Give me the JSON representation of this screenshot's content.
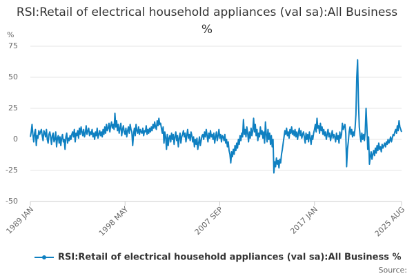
{
  "chart_data": {
    "type": "line",
    "title": "RSI:Retail of electrical household appliances (val sa):All Business %",
    "y_label": "%",
    "source": "Source:",
    "categories": [
      "1989 JAN",
      null,
      null,
      null,
      null,
      null,
      null,
      null,
      null,
      null,
      null,
      null,
      null,
      null,
      null,
      null,
      null,
      null,
      null,
      null,
      null,
      null,
      null,
      null,
      null,
      null,
      null,
      null,
      null,
      null,
      null,
      null,
      null,
      null,
      null,
      null,
      null,
      null,
      null,
      null,
      null,
      null,
      null,
      null,
      null,
      null,
      null,
      null,
      null,
      null,
      null,
      null,
      null,
      null,
      null,
      null,
      null,
      null,
      null,
      null,
      null,
      null,
      null,
      null,
      null,
      null,
      null,
      null,
      null,
      null,
      null,
      null,
      null,
      null,
      null,
      null,
      null,
      null,
      null,
      null,
      null,
      null,
      null,
      null,
      null,
      null,
      null,
      null,
      null,
      null,
      null,
      null,
      null,
      null,
      null,
      null,
      null,
      null,
      null,
      null,
      null,
      null,
      null,
      null,
      null,
      null,
      null,
      null,
      null,
      null,
      null,
      null,
      "1998 MAY",
      null,
      null,
      null,
      null,
      null,
      null,
      null,
      null,
      null,
      null,
      null,
      null,
      null,
      null,
      null,
      null,
      null,
      null,
      null,
      null,
      null,
      null,
      null,
      null,
      null,
      null,
      null,
      null,
      null,
      null,
      null,
      null,
      null,
      null,
      null,
      null,
      null,
      null,
      null,
      null,
      null,
      null,
      null,
      null,
      null,
      null,
      null,
      null,
      null,
      null,
      null,
      null,
      null,
      null,
      null,
      null,
      null,
      null,
      null,
      null,
      null,
      null,
      null,
      null,
      null,
      null,
      null,
      null,
      null,
      null,
      null,
      null,
      null,
      null,
      null,
      null,
      null,
      null,
      null,
      null,
      null,
      null,
      null,
      null,
      null,
      null,
      null,
      null,
      null,
      null,
      null,
      null,
      null,
      null,
      null,
      null,
      null,
      null,
      null,
      null,
      null,
      null,
      null,
      null,
      null,
      null,
      null,
      null,
      null,
      null,
      null,
      "2007 SEP",
      null,
      null,
      null,
      null,
      null,
      null,
      null,
      null,
      null,
      null,
      null,
      null,
      null,
      null,
      null,
      null,
      null,
      null,
      null,
      null,
      null,
      null,
      null,
      null,
      null,
      null,
      null,
      null,
      null,
      null,
      null,
      null,
      null,
      null,
      null,
      null,
      null,
      null,
      null,
      null,
      null,
      null,
      null,
      null,
      null,
      null,
      null,
      null,
      null,
      null,
      null,
      null,
      null,
      null,
      null,
      null,
      null,
      null,
      null,
      null,
      null,
      null,
      null,
      null,
      null,
      null,
      null,
      null,
      null,
      null,
      null,
      null,
      null,
      null,
      null,
      null,
      null,
      null,
      null,
      null,
      null,
      null,
      null,
      null,
      null,
      null,
      null,
      null,
      null,
      null,
      null,
      null,
      null,
      null,
      null,
      null,
      null,
      null,
      null,
      null,
      null,
      null,
      null,
      null,
      null,
      null,
      null,
      null,
      null,
      null,
      null,
      "2017 JAN",
      null,
      null,
      null,
      null,
      null,
      null,
      null,
      null,
      null,
      null,
      null,
      null,
      null,
      null,
      null,
      null,
      null,
      null,
      null,
      null,
      null,
      null,
      null,
      null,
      null,
      null,
      null,
      null,
      null,
      null,
      null,
      null,
      null,
      null,
      null,
      null,
      null,
      null,
      null,
      null,
      null,
      null,
      null,
      null,
      null,
      null,
      null,
      null,
      null,
      null,
      null,
      null,
      null,
      null,
      null,
      null,
      null,
      null,
      null,
      null,
      null,
      null,
      null,
      null,
      null,
      null,
      null,
      null,
      null,
      null,
      null,
      null,
      null,
      null,
      null,
      null,
      null,
      null,
      null,
      null,
      null,
      null,
      null,
      null,
      null,
      null,
      null,
      null,
      null,
      null,
      null,
      null,
      null,
      null,
      null,
      null,
      null,
      null,
      null,
      null,
      null,
      null,
      "2025 AUG"
    ],
    "series": [
      {
        "name": "RSI:Retail of electrical household appliances (val sa):All Business %",
        "color": "#0f80c1",
        "values": [
          2,
          6,
          12,
          4,
          -2,
          5,
          8,
          -5,
          3,
          1,
          7,
          4,
          6,
          8,
          3,
          -1,
          7,
          5,
          2,
          8,
          0,
          -3,
          4,
          6,
          2,
          -4,
          3,
          5,
          -2,
          0,
          6,
          -6,
          1,
          3,
          -3,
          2,
          -5,
          1,
          4,
          -2,
          0,
          -8,
          2,
          5,
          -3,
          1,
          -1,
          3,
          0,
          4,
          6,
          2,
          8,
          -2,
          5,
          3,
          7,
          1,
          9,
          4,
          10,
          6,
          3,
          8,
          2,
          5,
          11,
          4,
          7,
          9,
          3,
          6,
          4,
          8,
          2,
          5,
          0,
          6,
          3,
          9,
          1,
          4,
          7,
          3,
          6,
          2,
          8,
          4,
          10,
          5,
          12,
          7,
          9,
          13,
          6,
          11,
          14,
          9,
          12,
          8,
          21,
          10,
          15,
          7,
          12,
          5,
          9,
          13,
          3,
          8,
          11,
          6,
          4,
          9,
          2,
          7,
          10,
          5,
          12,
          8,
          6,
          -5,
          4,
          9,
          3,
          12,
          7,
          5,
          10,
          4,
          8,
          6,
          5,
          9,
          3,
          7,
          6,
          11,
          4,
          8,
          5,
          9,
          6,
          10,
          7,
          12,
          9,
          14,
          10,
          8,
          15,
          11,
          17,
          12,
          13,
          9,
          5,
          10,
          -3,
          6,
          2,
          -8,
          4,
          -5,
          1,
          3,
          -2,
          5,
          0,
          4,
          -4,
          2,
          6,
          -1,
          3,
          -6,
          1,
          5,
          -3,
          2,
          4,
          7,
          2,
          5,
          -2,
          3,
          8,
          1,
          4,
          -1,
          6,
          3,
          -2,
          2,
          -6,
          0,
          -4,
          1,
          -8,
          -3,
          2,
          -5,
          -1,
          3,
          4,
          0,
          6,
          2,
          8,
          3,
          -2,
          5,
          1,
          7,
          2,
          4,
          0,
          5,
          -3,
          2,
          6,
          -1,
          3,
          8,
          1,
          4,
          -2,
          3,
          2,
          -1,
          4,
          -3,
          0,
          -6,
          -2,
          -9,
          -12,
          -19,
          -10,
          -14,
          -8,
          -12,
          -5,
          -9,
          -3,
          -7,
          0,
          -4,
          3,
          -1,
          5,
          2,
          16,
          4,
          8,
          2,
          10,
          5,
          -2,
          6,
          1,
          9,
          3,
          7,
          17,
          6,
          12,
          3,
          8,
          -1,
          5,
          2,
          10,
          4,
          7,
          1,
          6,
          -3,
          14,
          4,
          -2,
          8,
          0,
          5,
          -4,
          3,
          -6,
          0,
          -27,
          -18,
          -22,
          -15,
          -20,
          -17,
          -23,
          -16,
          -19,
          -12,
          -8,
          -3,
          2,
          7,
          4,
          9,
          3,
          6,
          1,
          8,
          5,
          10,
          4,
          7,
          3,
          8,
          2,
          6,
          0,
          5,
          9,
          3,
          7,
          1,
          4,
          6,
          2,
          -3,
          5,
          0,
          4,
          -2,
          6,
          1,
          -4,
          3,
          0,
          5,
          8,
          12,
          6,
          17,
          9,
          11,
          5,
          13,
          7,
          10,
          4,
          8,
          3,
          6,
          0,
          4,
          8,
          2,
          5,
          -1,
          3,
          7,
          1,
          4,
          2,
          -2,
          5,
          0,
          3,
          -3,
          6,
          1,
          4,
          13,
          8,
          10,
          12,
          5,
          -22,
          -8,
          -2,
          6,
          10,
          4,
          8,
          2,
          6,
          3,
          9,
          20,
          50,
          64,
          30,
          10,
          3,
          -2,
          5,
          0,
          4,
          -1,
          6,
          25,
          10,
          -8,
          2,
          -20,
          -14,
          -10,
          -16,
          -12,
          -9,
          -13,
          -7,
          -11,
          -5,
          -9,
          -3,
          -8,
          -6,
          -10,
          -4,
          -7,
          -5,
          -3,
          -6,
          -2,
          -4,
          0,
          -3,
          -1,
          2,
          -2,
          1,
          4,
          3,
          6,
          8,
          5,
          11,
          7,
          15,
          10,
          8,
          6
        ]
      }
    ],
    "ylim": [
      -50,
      75
    ],
    "yticks": [
      -50,
      -25,
      0,
      25,
      50,
      75
    ],
    "grid": true,
    "legend": "bottom"
  }
}
